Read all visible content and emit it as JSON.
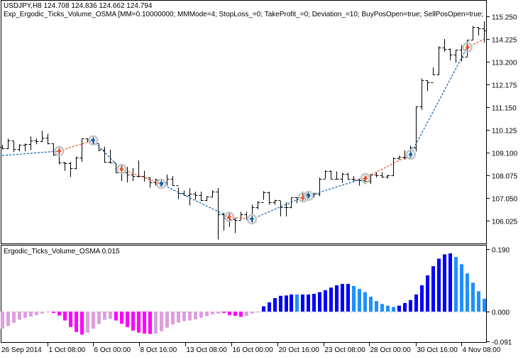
{
  "header": {
    "symbol_line": "USDJPY,H8  124.708 124.836 124.662 124.794",
    "expert_line": "Exp_Ergodic_Ticks_Volume_OSMA [MM=0.10000000; MMMode=4; StopLoss_=0; TakeProfit_=0; Deviation_=10; BuyPosOpen=true; SellPosOpen=true; BuyPos"
  },
  "subwindow": {
    "title": "Ergodic_Ticks_Volume_OSMA 0.015"
  },
  "chart_data": [
    {
      "type": "ohlc",
      "symbol": "USDJPY",
      "timeframe": "H8",
      "y_ticks": [
        "115.250",
        "114.225",
        "113.200",
        "112.175",
        "111.150",
        "110.125",
        "109.100",
        "108.075",
        "107.050",
        "106.025"
      ],
      "first_open": 109.35,
      "high": [
        109.45,
        109.74,
        109.64,
        109.48,
        109.51,
        109.83,
        109.74,
        110.09,
        109.95,
        109.51,
        109.3,
        108.68,
        108.68,
        108.92,
        109.74,
        109.74,
        109.83,
        109.48,
        109.37,
        109.24,
        108.57,
        108.51,
        108.46,
        108.41,
        108.75,
        108.28,
        107.98,
        107.93,
        107.93,
        108.11,
        108.04,
        107.52,
        107.39,
        107.5,
        107.34,
        107.34,
        107.13,
        107.39,
        107.5,
        106.38,
        106.43,
        106.16,
        106.43,
        106.43,
        106.75,
        106.91,
        107.36,
        107.34,
        106.97,
        106.91,
        106.86,
        107.07,
        107.07,
        107.34,
        107.34,
        107.29,
        107.98,
        108.3,
        108.3,
        108.25,
        108.19,
        108.19,
        108.04,
        107.93,
        107.87,
        108.14,
        108.22,
        108.22,
        108.11,
        108.89,
        108.96,
        109.21,
        109.42,
        111.19,
        112.45,
        112.36,
        112.95,
        113.91,
        114.23,
        113.8,
        113.75,
        113.96,
        114.2,
        114.82,
        114.76,
        115.03
      ],
      "low": [
        109.25,
        109.26,
        109.12,
        109.16,
        109.16,
        109.21,
        109.48,
        109.58,
        109.48,
        108.96,
        108.57,
        108.28,
        108.0,
        108.35,
        108.68,
        109.58,
        109.48,
        109.16,
        108.64,
        108.62,
        108.19,
        107.82,
        107.75,
        107.82,
        107.98,
        107.79,
        107.52,
        107.61,
        107.57,
        107.61,
        107.61,
        107.0,
        107.15,
        106.72,
        106.97,
        106.91,
        106.91,
        107.07,
        105.18,
        105.58,
        105.74,
        105.47,
        106.06,
        106.06,
        105.95,
        106.54,
        106.97,
        106.75,
        106.75,
        106.22,
        106.22,
        106.59,
        106.81,
        106.86,
        107.07,
        107.07,
        107.13,
        107.93,
        107.9,
        107.9,
        107.74,
        107.87,
        107.77,
        107.61,
        107.68,
        107.68,
        107.98,
        107.96,
        107.93,
        108.04,
        108.78,
        108.78,
        108.94,
        109.16,
        111.03,
        111.88,
        112.6,
        112.6,
        113.66,
        113.27,
        113.16,
        113.21,
        113.43,
        114.18,
        114.39,
        114.07
      ],
      "close": [
        109.3,
        109.64,
        109.26,
        109.44,
        109.48,
        109.64,
        109.6,
        109.79,
        109.51,
        108.99,
        108.64,
        108.62,
        108.41,
        108.89,
        109.74,
        109.71,
        109.51,
        109.24,
        108.68,
        108.64,
        108.19,
        108.19,
        108.11,
        108.05,
        108.03,
        107.98,
        107.75,
        107.88,
        107.75,
        107.93,
        107.64,
        107.27,
        107.18,
        107.24,
        107.18,
        106.97,
        107.1,
        107.34,
        106.32,
        106.16,
        106.1,
        106.06,
        106.32,
        106.16,
        106.64,
        106.86,
        107.32,
        106.86,
        106.94,
        106.64,
        106.64,
        107.07,
        107.07,
        107.23,
        107.18,
        107.25,
        107.93,
        108.27,
        107.93,
        107.93,
        108.14,
        107.93,
        107.87,
        107.85,
        107.82,
        108.11,
        108.09,
        108.0,
        108.07,
        108.84,
        108.92,
        108.89,
        109.32,
        111.19,
        112.36,
        112.27,
        112.63,
        113.86,
        113.77,
        113.51,
        113.75,
        113.43,
        114.2,
        114.76,
        114.71,
        114.6
      ],
      "signal_line": [
        {
          "bar": 0,
          "price": 108.97,
          "color": "#0a5fb4"
        },
        {
          "bar": 10,
          "price": 109.17,
          "color": "#f04a1a"
        },
        {
          "bar": 16,
          "price": 109.65,
          "color": "#0a5fb4"
        },
        {
          "bar": 21,
          "price": 108.36,
          "color": "#f04a1a"
        },
        {
          "bar": 28,
          "price": 107.69,
          "color": "#0a5fb4"
        },
        {
          "bar": 40,
          "price": 106.2,
          "color": "#f04a1a"
        },
        {
          "bar": 44,
          "price": 106.09,
          "color": "#0a5fb4"
        },
        {
          "bar": 53,
          "price": 107.08,
          "color": "#f04a1a"
        },
        {
          "bar": 54,
          "price": 107.15,
          "color": "#0a5fb4"
        },
        {
          "bar": 64,
          "price": 107.95,
          "color": "#f04a1a"
        },
        {
          "bar": 72,
          "price": 109.01,
          "color": "#0a5fb4"
        },
        {
          "bar": 82,
          "price": 113.85,
          "color": "#f04a1a"
        },
        {
          "bar": 85,
          "price": 114.23,
          "color": "#f04a1a"
        }
      ],
      "signals": [
        {
          "bar": 10,
          "price": 109.17,
          "type": "sell"
        },
        {
          "bar": 16,
          "price": 109.65,
          "type": "buy"
        },
        {
          "bar": 21,
          "price": 108.36,
          "type": "sell"
        },
        {
          "bar": 28,
          "price": 107.69,
          "type": "buy"
        },
        {
          "bar": 40,
          "price": 106.2,
          "type": "sell"
        },
        {
          "bar": 44,
          "price": 106.09,
          "type": "buy"
        },
        {
          "bar": 53,
          "price": 107.08,
          "type": "sell"
        },
        {
          "bar": 54,
          "price": 107.15,
          "type": "buy"
        },
        {
          "bar": 64,
          "price": 107.95,
          "type": "sell"
        },
        {
          "bar": 72,
          "price": 109.01,
          "type": "buy"
        },
        {
          "bar": 82,
          "price": 113.85,
          "type": "sell"
        }
      ],
      "colors": {
        "bar": "#000000",
        "buy": "#0a5fb4",
        "sell": "#f04a1a",
        "signal_ring": "#c4c4c4"
      }
    },
    {
      "type": "histogram",
      "name": "Ergodic_Ticks_Volume_OSMA",
      "y_ticks": [
        "0.190",
        "0.000",
        "-0.091"
      ],
      "ylim": [
        -0.091,
        0.19
      ],
      "values": [
        -0.052,
        -0.044,
        -0.034,
        -0.025,
        -0.019,
        -0.015,
        -0.011,
        -0.006,
        -0.001,
        -0.004,
        -0.012,
        -0.027,
        -0.047,
        -0.062,
        -0.07,
        -0.064,
        -0.052,
        -0.038,
        -0.025,
        -0.022,
        -0.027,
        -0.037,
        -0.047,
        -0.058,
        -0.064,
        -0.067,
        -0.068,
        -0.067,
        -0.06,
        -0.049,
        -0.039,
        -0.034,
        -0.029,
        -0.027,
        -0.024,
        -0.019,
        -0.014,
        -0.009,
        -0.006,
        -0.004,
        -0.011,
        -0.013,
        -0.016,
        -0.013,
        -0.006,
        -0.001,
        0.016,
        0.028,
        0.041,
        0.048,
        0.049,
        0.052,
        0.052,
        0.052,
        0.052,
        0.054,
        0.059,
        0.065,
        0.073,
        0.08,
        0.084,
        0.084,
        0.078,
        0.069,
        0.059,
        0.045,
        0.032,
        0.023,
        0.018,
        0.014,
        0.018,
        0.026,
        0.035,
        0.052,
        0.08,
        0.11,
        0.138,
        0.161,
        0.174,
        0.177,
        0.166,
        0.144,
        0.116,
        0.088,
        0.062,
        0.039
      ],
      "palette": [
        "#dda0dd",
        "#ff00ff",
        "#0000ff",
        "#1e90ff"
      ],
      "color_index": [
        0,
        0,
        0,
        0,
        0,
        0,
        0,
        0,
        0,
        1,
        1,
        1,
        1,
        1,
        1,
        0,
        0,
        0,
        0,
        0,
        1,
        1,
        1,
        1,
        1,
        1,
        1,
        0,
        0,
        0,
        0,
        0,
        0,
        0,
        0,
        0,
        0,
        0,
        0,
        1,
        1,
        1,
        1,
        0,
        0,
        0,
        2,
        2,
        2,
        2,
        2,
        2,
        3,
        2,
        2,
        2,
        2,
        2,
        2,
        2,
        2,
        2,
        3,
        3,
        3,
        3,
        3,
        3,
        3,
        3,
        2,
        2,
        2,
        2,
        2,
        2,
        2,
        2,
        2,
        2,
        3,
        3,
        3,
        3,
        3,
        3
      ],
      "zero_line_color": "#c0c0c0"
    }
  ],
  "time_axis": [
    "26 Sep 2014",
    "1 Oct 08:00",
    "6 Oct 00:00",
    "8 Oct 16:00",
    "13 Oct 08:00",
    "16 Oct 00:00",
    "20 Oct 16:00",
    "23 Oct 08:00",
    "28 Oct 00:00",
    "30 Oct 16:00",
    "4 Nov 08:00"
  ]
}
